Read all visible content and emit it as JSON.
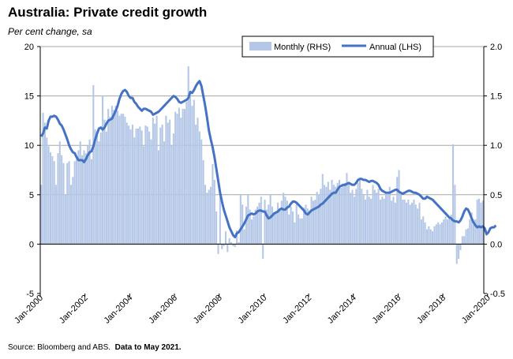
{
  "title": "Australia: Private credit growth",
  "subtitle": "Per cent change, sa",
  "footer": {
    "source": "Source: Bloomberg and ABS.",
    "note": "Data to May 2021."
  },
  "colors": {
    "bars": "#b4c7e7",
    "line": "#4472c4",
    "grid": "#a6a6a6",
    "axis": "#000000"
  },
  "chart_data": {
    "type": "bar+line",
    "title": "Australia: Private credit growth",
    "subtitle": "Per cent change, sa",
    "x_range": [
      "Jan-2000",
      "May-2021"
    ],
    "x_tick_labels": [
      "Jan-2000",
      "Jan-2002",
      "Jan-2004",
      "Jan-2006",
      "Jan-2008",
      "Jan-2010",
      "Jan-2012",
      "Jan-2014",
      "Jan-2016",
      "Jan-2018",
      "Jan-2020"
    ],
    "y_left": {
      "ticks": [
        "20",
        "15",
        "10",
        "5",
        "0",
        "-5"
      ],
      "min": -5,
      "max": 20
    },
    "y_right": {
      "ticks": [
        "2.0",
        "1.5",
        "1.0",
        "0.5",
        "0.0",
        "-0.5"
      ],
      "min": -0.5,
      "max": 2.0
    },
    "legend": {
      "placement": "top-right",
      "entries": [
        "Monthly (RHS)",
        "Annual (LHS)"
      ]
    },
    "grid": true,
    "series": [
      {
        "name": "Monthly (RHS)",
        "kind": "bar",
        "axis": "right",
        "start": "2000-01",
        "values": [
          0.6,
          1.33,
          1.23,
          1.08,
          0.99,
          0.93,
          0.89,
          0.84,
          0.6,
          0.92,
          1.04,
          0.9,
          0.82,
          0.5,
          0.82,
          0.84,
          0.6,
          0.68,
          0.84,
          0.86,
          0.95,
          1.04,
          0.9,
          0.95,
          0.92,
          1.0,
          1.06,
          0.86,
          1.61,
          1.16,
          1.1,
          1.04,
          1.13,
          1.5,
          1.26,
          1.14,
          1.37,
          1.29,
          1.4,
          1.36,
          1.4,
          1.35,
          1.3,
          1.32,
          1.32,
          1.29,
          1.23,
          1.2,
          1.16,
          1.21,
          1.08,
          1.17,
          1.17,
          1.19,
          1.15,
          0.99,
          1.2,
          1.19,
          1.14,
          1.06,
          1.28,
          1.22,
          1.3,
          0.95,
          1.18,
          1.21,
          1.04,
          1.3,
          1.23,
          1.26,
          1.0,
          1.12,
          1.34,
          1.32,
          1.38,
          1.28,
          1.37,
          1.37,
          1.44,
          1.8,
          1.52,
          1.4,
          1.46,
          1.21,
          1.28,
          1.14,
          1.06,
          0.85,
          0.6,
          0.52,
          0.55,
          0.58,
          0.81,
          0.65,
          0.33,
          -0.1,
          0.48,
          -0.05,
          -0.02,
          0.13,
          -0.08,
          0.06,
          0.02,
          -0.02,
          -0.03,
          0.14,
          0.02,
          0.5,
          0.4,
          0.15,
          0.38,
          0.5,
          0.35,
          0.25,
          0.28,
          0.35,
          0.38,
          0.42,
          0.48,
          -0.15,
          0.45,
          0.35,
          0.4,
          0.5,
          0.38,
          0.32,
          0.32,
          0.42,
          0.36,
          0.44,
          0.52,
          0.48,
          0.44,
          0.3,
          0.38,
          0.33,
          0.22,
          0.42,
          0.3,
          0.26,
          0.26,
          0.37,
          0.4,
          0.36,
          0.34,
          0.48,
          0.44,
          0.45,
          0.53,
          0.5,
          0.56,
          0.71,
          0.6,
          0.58,
          0.63,
          0.55,
          0.65,
          0.6,
          0.58,
          0.62,
          0.65,
          0.57,
          0.6,
          0.62,
          0.72,
          0.62,
          0.52,
          0.55,
          0.48,
          0.56,
          0.62,
          0.65,
          0.56,
          0.5,
          0.45,
          0.55,
          0.48,
          0.46,
          0.6,
          0.55,
          0.52,
          0.56,
          0.45,
          0.48,
          0.46,
          0.52,
          0.5,
          0.58,
          0.44,
          0.48,
          0.42,
          0.68,
          0.75,
          0.5,
          0.45,
          0.45,
          0.42,
          0.45,
          0.4,
          0.42,
          0.45,
          0.4,
          0.36,
          0.42,
          0.25,
          0.28,
          0.22,
          0.15,
          0.18,
          0.15,
          0.13,
          0.18,
          0.2,
          0.22,
          0.2,
          0.22,
          0.25,
          0.28,
          0.25,
          0.28,
          0.3,
          1.01,
          0.6,
          -0.2,
          -0.15,
          -0.06,
          0.08,
          0.08,
          0.15,
          0.16,
          0.25,
          0.32,
          0.2,
          0.25,
          0.45,
          0.46,
          0.42,
          0.44
        ]
      },
      {
        "name": "Annual (LHS)",
        "kind": "line",
        "axis": "left",
        "start": "2000-01",
        "values": [
          10.9,
          11.2,
          11.8,
          11.7,
          12.5,
          12.9,
          12.9,
          13.0,
          12.9,
          12.6,
          12.2,
          12.0,
          11.6,
          11.1,
          10.6,
          10.0,
          9.6,
          9.3,
          9.2,
          8.8,
          8.5,
          8.5,
          8.5,
          8.3,
          8.6,
          9.0,
          9.3,
          9.4,
          9.9,
          10.6,
          11.2,
          11.7,
          11.8,
          11.6,
          11.8,
          12.2,
          12.5,
          12.6,
          12.7,
          13.1,
          13.5,
          14.0,
          14.7,
          15.2,
          15.5,
          15.6,
          15.4,
          15.0,
          14.8,
          14.8,
          14.4,
          14.2,
          13.9,
          13.7,
          13.5,
          13.7,
          13.7,
          13.6,
          13.5,
          13.4,
          13.1,
          13.2,
          13.3,
          13.4,
          13.6,
          13.8,
          14.0,
          14.2,
          14.4,
          14.6,
          14.8,
          15.0,
          14.9,
          14.7,
          14.4,
          14.3,
          14.4,
          14.5,
          14.6,
          14.8,
          15.4,
          15.3,
          15.6,
          16.0,
          16.3,
          16.5,
          16.0,
          15.0,
          14.0,
          12.8,
          11.5,
          10.6,
          9.8,
          8.8,
          7.6,
          6.4,
          5.2,
          4.3,
          3.5,
          2.9,
          2.3,
          1.7,
          1.3,
          0.9,
          0.7,
          1.1,
          1.2,
          1.5,
          1.8,
          2.1,
          2.5,
          2.9,
          3.0,
          3.1,
          3.0,
          3.1,
          3.3,
          3.4,
          3.4,
          3.3,
          3.3,
          2.9,
          2.6,
          2.7,
          2.9,
          3.1,
          3.2,
          3.3,
          3.5,
          3.6,
          3.5,
          3.5,
          3.7,
          3.8,
          4.1,
          4.3,
          4.3,
          4.2,
          4.0,
          3.8,
          3.6,
          3.4,
          3.1,
          3.0,
          3.2,
          3.4,
          3.5,
          3.6,
          3.7,
          3.8,
          4.0,
          4.1,
          4.3,
          4.5,
          4.7,
          4.9,
          5.1,
          5.2,
          5.2,
          5.5,
          5.8,
          5.9,
          6.0,
          6.0,
          6.1,
          6.2,
          6.1,
          6.0,
          6.0,
          6.2,
          6.5,
          6.6,
          6.6,
          6.5,
          6.5,
          6.4,
          6.3,
          6.4,
          6.4,
          6.3,
          6.2,
          6.0,
          5.6,
          5.4,
          5.3,
          5.2,
          5.2,
          5.2,
          5.3,
          5.4,
          5.5,
          5.5,
          5.3,
          5.2,
          5.1,
          5.2,
          5.3,
          5.4,
          5.4,
          5.3,
          5.2,
          5.2,
          5.1,
          5.0,
          4.8,
          4.6,
          4.6,
          4.8,
          4.7,
          4.6,
          4.5,
          4.3,
          4.1,
          3.9,
          3.7,
          3.5,
          3.3,
          3.1,
          2.9,
          2.7,
          2.6,
          2.4,
          2.3,
          2.3,
          2.2,
          2.4,
          2.8,
          3.3,
          3.6,
          3.5,
          3.1,
          2.6,
          2.2,
          1.9,
          1.7,
          1.8,
          1.7,
          1.8,
          1.6,
          1.0,
          1.2,
          1.6,
          1.7,
          1.7,
          1.9
        ]
      }
    ]
  }
}
